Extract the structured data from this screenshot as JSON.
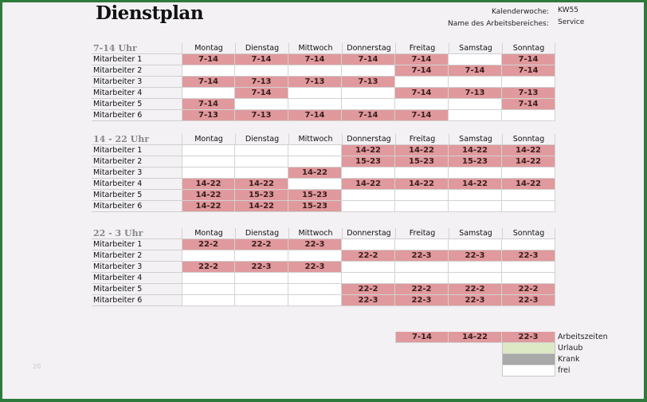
{
  "title": "Dienstplan",
  "meta": {
    "week_label": "Kalenderwoche:",
    "week_value": "KW55",
    "area_label": "Name des Arbeitsbereiches:",
    "area_value": "Service"
  },
  "days": [
    "Montag",
    "Dienstag",
    "Mittwoch",
    "Donnerstag",
    "Freitag",
    "Samstag",
    "Sonntag"
  ],
  "sections": [
    {
      "title": "7-14 Uhr",
      "rows": [
        {
          "employee": "Mitarbeiter 1",
          "shifts": [
            "7-14",
            "7-14",
            "7-14",
            "7-14",
            "7-14",
            "",
            "7-14"
          ]
        },
        {
          "employee": "Mitarbeiter 2",
          "shifts": [
            "",
            "",
            "",
            "",
            "7-14",
            "7-14",
            "7-14"
          ]
        },
        {
          "employee": "Mitarbeiter 3",
          "shifts": [
            "7-14",
            "7-13",
            "7-13",
            "7-13",
            "",
            "",
            ""
          ]
        },
        {
          "employee": "Mitarbeiter 4",
          "shifts": [
            "",
            "7-14",
            "",
            "",
            "7-14",
            "7-13",
            "7-13"
          ]
        },
        {
          "employee": "Mitarbeiter 5",
          "shifts": [
            "7-14",
            "",
            "",
            "",
            "",
            "",
            "7-14"
          ]
        },
        {
          "employee": "Mitarbeiter 6",
          "shifts": [
            "7-13",
            "7-13",
            "7-14",
            "7-14",
            "7-14",
            "",
            ""
          ]
        }
      ]
    },
    {
      "title": "14 - 22 Uhr",
      "rows": [
        {
          "employee": "Mitarbeiter 1",
          "shifts": [
            "",
            "",
            "",
            "14-22",
            "14-22",
            "14-22",
            "14-22"
          ]
        },
        {
          "employee": "Mitarbeiter 2",
          "shifts": [
            "",
            "",
            "",
            "15-23",
            "15-23",
            "15-23",
            "14-22"
          ]
        },
        {
          "employee": "Mitarbeiter 3",
          "shifts": [
            "",
            "",
            "14-22",
            "",
            "",
            "",
            ""
          ]
        },
        {
          "employee": "Mitarbeiter 4",
          "shifts": [
            "14-22",
            "14-22",
            "",
            "14-22",
            "14-22",
            "14-22",
            "14-22"
          ]
        },
        {
          "employee": "Mitarbeiter 5",
          "shifts": [
            "14-22",
            "15-23",
            "15-23",
            "",
            "",
            "",
            ""
          ]
        },
        {
          "employee": "Mitarbeiter 6",
          "shifts": [
            "14-22",
            "14-22",
            "15-23",
            "",
            "",
            "",
            ""
          ]
        }
      ]
    },
    {
      "title": "22 - 3 Uhr",
      "rows": [
        {
          "employee": "Mitarbeiter 1",
          "shifts": [
            "22-2",
            "22-2",
            "22-3",
            "",
            "",
            "",
            ""
          ]
        },
        {
          "employee": "Mitarbeiter 2",
          "shifts": [
            "",
            "",
            "",
            "22-2",
            "22-3",
            "22-3",
            "22-3"
          ]
        },
        {
          "employee": "Mitarbeiter 3",
          "shifts": [
            "22-2",
            "22-3",
            "22-3",
            "",
            "",
            "",
            ""
          ]
        },
        {
          "employee": "Mitarbeiter 4",
          "shifts": [
            "",
            "",
            "",
            "",
            "",
            "",
            ""
          ]
        },
        {
          "employee": "Mitarbeiter 5",
          "shifts": [
            "",
            "",
            "",
            "22-2",
            "22-2",
            "22-2",
            "22-2"
          ]
        },
        {
          "employee": "Mitarbeiter 6",
          "shifts": [
            "",
            "",
            "",
            "22-3",
            "22-3",
            "22-3",
            "22-3"
          ]
        }
      ]
    }
  ],
  "legend": {
    "work_times": [
      "7-14",
      "14-22",
      "22-3"
    ],
    "items": [
      {
        "label": "Arbeitszeiten",
        "color": "#e0999d"
      },
      {
        "label": "Urlaub",
        "color": "#dde8c4"
      },
      {
        "label": "Krank",
        "color": "#a9a9a9"
      },
      {
        "label": "frei",
        "color": "#ffffff"
      }
    ]
  },
  "colors": {
    "shift": "#e0999d",
    "border": "#2e7a3c",
    "background": "#f3f1f4"
  },
  "page_number": "20"
}
